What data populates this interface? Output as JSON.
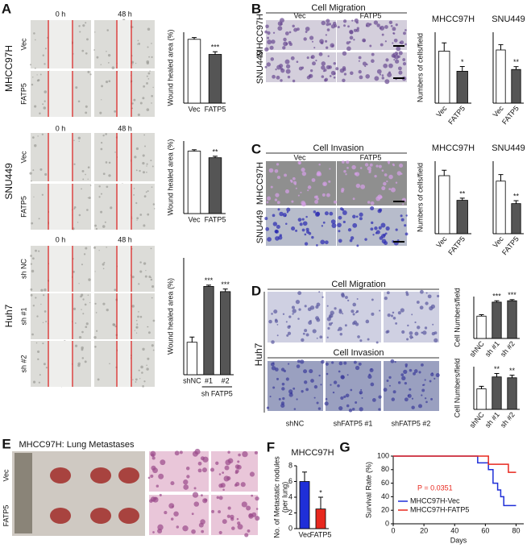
{
  "figure": {
    "A": {
      "letter": "A",
      "time_labels": [
        [
          "0 h",
          "48 h"
        ],
        [
          "0 h",
          "48 h"
        ],
        [
          "0 h",
          "48 h"
        ]
      ],
      "cell_lines": [
        "MHCC97H",
        "SNU449",
        "Huh7"
      ],
      "row_labels": [
        [
          "Vec",
          "FATP5"
        ],
        [
          "Vec",
          "FATP5"
        ],
        [
          "sh NC",
          "sh #1",
          "sh #2"
        ]
      ]
    },
    "B": {
      "letter": "B",
      "title": "Cell Migration",
      "columns": [
        "Vec",
        "FATP5"
      ],
      "rows": [
        "MHCC97H",
        "SNU449"
      ]
    },
    "C": {
      "letter": "C",
      "title": "Cell Invasion",
      "columns": [
        "Vec",
        "FATP5"
      ],
      "rows": [
        "MHCC97H",
        "SNU449"
      ]
    },
    "D": {
      "letter": "D",
      "titles": [
        "Cell Migration",
        "Cell Invasion"
      ],
      "cell_line": "Huh7",
      "columns": [
        "shNC",
        "shFATP5 #1",
        "shFATP5 #2"
      ]
    },
    "E": {
      "letter": "E",
      "title": "MHCC97H: Lung Metastases",
      "rows": [
        "Vec",
        "FATP5"
      ]
    },
    "F": {
      "letter": "F"
    },
    "G": {
      "letter": "G"
    }
  },
  "chart_data": [
    {
      "type": "bar",
      "ylabel": "Wound healed area (%)",
      "categories": [
        "Vec",
        "FATP5"
      ],
      "values": [
        72,
        55
      ],
      "errors": [
        2,
        3
      ],
      "colors": [
        "#ffffff",
        "#555555"
      ],
      "ylim": [
        0,
        80
      ],
      "annotations": [
        {
          "category": "FATP5",
          "text": "***"
        }
      ]
    },
    {
      "type": "bar",
      "ylabel": "Wound healed area (%)",
      "categories": [
        "Vec",
        "FATP5"
      ],
      "values": [
        86,
        77
      ],
      "errors": [
        2,
        2
      ],
      "colors": [
        "#ffffff",
        "#555555"
      ],
      "ylim": [
        0,
        100
      ],
      "annotations": [
        {
          "category": "FATP5",
          "text": "**"
        }
      ]
    },
    {
      "type": "bar",
      "ylabel": "Wound healed area (%)",
      "categories": [
        "shNC",
        "#1",
        "#2"
      ],
      "group_label": "sh FATP5",
      "values": [
        25,
        68,
        64
      ],
      "errors": [
        4,
        1,
        2
      ],
      "colors": [
        "#ffffff",
        "#555555",
        "#555555"
      ],
      "ylim": [
        0,
        90
      ],
      "annotations": [
        {
          "category": "#1",
          "text": "***"
        },
        {
          "category": "#2",
          "text": "***"
        }
      ]
    },
    {
      "type": "bar",
      "title": "MHCC97H",
      "ylabel": "Numbers of cells/field",
      "categories": [
        "Vec",
        "FATP5"
      ],
      "values": [
        220,
        135
      ],
      "errors": [
        35,
        20
      ],
      "colors": [
        "#ffffff",
        "#555555"
      ],
      "ylim": [
        0,
        300
      ],
      "annotations": [
        {
          "category": "FATP5",
          "text": "*"
        }
      ]
    },
    {
      "type": "bar",
      "title": "SNU449",
      "categories": [
        "Vec",
        "FATP5"
      ],
      "values": [
        150,
        95
      ],
      "errors": [
        15,
        8
      ],
      "colors": [
        "#ffffff",
        "#555555"
      ],
      "ylim": [
        0,
        200
      ],
      "annotations": [
        {
          "category": "FATP5",
          "text": "**"
        }
      ]
    },
    {
      "type": "bar",
      "title": "MHCC97H",
      "ylabel": "Numbers of cells/field",
      "categories": [
        "Vec",
        "FATP5"
      ],
      "values": [
        160,
        92
      ],
      "errors": [
        15,
        6
      ],
      "colors": [
        "#ffffff",
        "#555555"
      ],
      "ylim": [
        0,
        200
      ],
      "annotations": [
        {
          "category": "FATP5",
          "text": "**"
        }
      ]
    },
    {
      "type": "bar",
      "title": "SNU449",
      "categories": [
        "Vec",
        "FATP5"
      ],
      "values": [
        145,
        83
      ],
      "errors": [
        18,
        8
      ],
      "colors": [
        "#ffffff",
        "#555555"
      ],
      "ylim": [
        0,
        200
      ],
      "annotations": [
        {
          "category": "FATP5",
          "text": "**"
        }
      ]
    },
    {
      "type": "bar",
      "ylabel": "Cell Numbers/field",
      "categories": [
        "shNC",
        "sh #1",
        "sh #2"
      ],
      "values": [
        160,
        260,
        270
      ],
      "errors": [
        10,
        10,
        8
      ],
      "colors": [
        "#ffffff",
        "#555555",
        "#555555"
      ],
      "ylim": [
        0,
        300
      ],
      "annotations": [
        {
          "category": "sh #1",
          "text": "***"
        },
        {
          "category": "sh #2",
          "text": "***"
        }
      ]
    },
    {
      "type": "bar",
      "ylabel": "Cell Numbers/field",
      "categories": [
        "shNC",
        "sh #1",
        "sh #2"
      ],
      "values": [
        120,
        190,
        185
      ],
      "errors": [
        15,
        20,
        15
      ],
      "colors": [
        "#ffffff",
        "#555555",
        "#555555"
      ],
      "ylim": [
        0,
        250
      ],
      "annotations": [
        {
          "category": "sh #1",
          "text": "**"
        },
        {
          "category": "sh #2",
          "text": "**"
        }
      ]
    },
    {
      "type": "bar",
      "title": "MHCC97H",
      "ylabel": "No. of Metastatic nodules",
      "ylabel_note": "(per lung)",
      "categories": [
        "Vec",
        "FATP5"
      ],
      "values": [
        6,
        2.5
      ],
      "errors": [
        1.2,
        1.5
      ],
      "colors": [
        "#1f2fd8",
        "#e8281e"
      ],
      "ylim": [
        0,
        8
      ],
      "yticks": [
        0,
        2,
        4,
        6,
        8
      ],
      "annotations": [
        {
          "category": "FATP5",
          "text": "*"
        }
      ]
    },
    {
      "type": "line",
      "xlabel": "Days",
      "ylabel": "Survival Rate (%)",
      "annotation": "P = 0.0351",
      "xlim": [
        0,
        85
      ],
      "ylim": [
        0,
        100
      ],
      "xticks": [
        0,
        20,
        40,
        60,
        80
      ],
      "yticks": [
        0,
        20,
        40,
        60,
        80,
        100
      ],
      "series": [
        {
          "name": "MHCC97H-Vec",
          "color": "#1f2fd8",
          "x": [
            0,
            55,
            55,
            62,
            62,
            65,
            65,
            68,
            68,
            70,
            70,
            72,
            72,
            80
          ],
          "values": [
            100,
            100,
            90,
            90,
            80,
            80,
            60,
            60,
            50,
            50,
            40,
            40,
            27,
            27
          ]
        },
        {
          "name": "MHCC97H-FATP5",
          "color": "#e8281e",
          "x": [
            0,
            62,
            62,
            75,
            75,
            80
          ],
          "values": [
            100,
            100,
            88,
            88,
            76,
            76
          ]
        }
      ]
    }
  ]
}
